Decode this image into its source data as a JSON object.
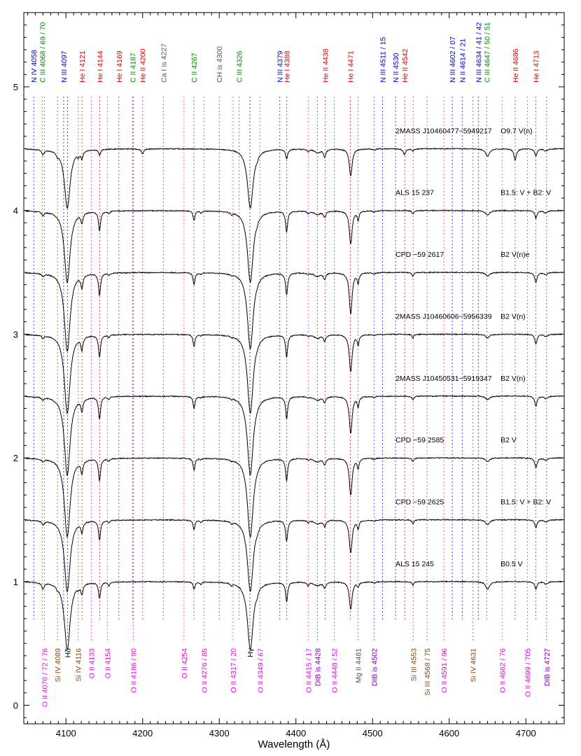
{
  "chart_data": {
    "type": "line",
    "xlabel": "Wavelength (Å)",
    "ylabel": "",
    "xlim": [
      4045,
      4750
    ],
    "ylim": [
      -0.15,
      5.6
    ],
    "xticks": [
      4100,
      4200,
      4300,
      4400,
      4500,
      4600,
      4700
    ],
    "yticks": [
      0,
      1,
      2,
      3,
      4,
      5
    ],
    "spectra": [
      {
        "name": "2MASS J10460477−5949217",
        "spt": "O9.7 V(n)",
        "offset": 4.5,
        "kind": "O"
      },
      {
        "name": "ALS 15 237",
        "spt": "B1.5: V + B2: V",
        "offset": 4.0,
        "kind": "B1"
      },
      {
        "name": "CPD −59 2617",
        "spt": "B2 V(n)e",
        "offset": 3.5,
        "kind": "Be"
      },
      {
        "name": "2MASS J10460606−5956339",
        "spt": "B2 V(n)",
        "offset": 3.0,
        "kind": "B2"
      },
      {
        "name": "2MASS J10450531−5919347",
        "spt": "B2 V(n)",
        "offset": 2.5,
        "kind": "B2"
      },
      {
        "name": "CPD −59 2585",
        "spt": "B2 V",
        "offset": 2.0,
        "kind": "B2"
      },
      {
        "name": "CPD −59 2625",
        "spt": "B1.5: V + B2: V",
        "offset": 1.5,
        "kind": "B1"
      },
      {
        "name": "ALS 15 245",
        "spt": "B0.5 V",
        "offset": 1.0,
        "kind": "B0"
      }
    ],
    "top_labels": [
      {
        "text": "N IV 4058",
        "x": 4058,
        "color": "#0000dd"
      },
      {
        "text": "C III 4068 / 69 / 70",
        "x": 4069,
        "color": "#008800"
      },
      {
        "text": "N III 4097",
        "x": 4097,
        "color": "#0000dd"
      },
      {
        "text": "He I 4121",
        "x": 4121,
        "color": "#dd0000"
      },
      {
        "text": "He I 4144",
        "x": 4144,
        "color": "#dd0000"
      },
      {
        "text": "He I 4169",
        "x": 4169,
        "color": "#dd0000"
      },
      {
        "text": "C II 4187",
        "x": 4187,
        "color": "#008800"
      },
      {
        "text": "He II 4200",
        "x": 4200,
        "color": "#dd0000"
      },
      {
        "text": "Ca I is 4227",
        "x": 4227,
        "color": "#555555"
      },
      {
        "text": "C II 4267",
        "x": 4267,
        "color": "#008800"
      },
      {
        "text": "CH is 4300",
        "x": 4300,
        "color": "#555555"
      },
      {
        "text": "C III 4326",
        "x": 4326,
        "color": "#008800"
      },
      {
        "text": "N III 4379",
        "x": 4379,
        "color": "#0000dd"
      },
      {
        "text": "He I 4388",
        "x": 4388,
        "color": "#dd0000"
      },
      {
        "text": "He II 4438",
        "x": 4438,
        "color": "#dd0000"
      },
      {
        "text": "He I 4471",
        "x": 4471,
        "color": "#dd0000"
      },
      {
        "text": "N III 4511 / 15",
        "x": 4513,
        "color": "#0000dd"
      },
      {
        "text": "N II 4530",
        "x": 4530,
        "color": "#0000dd"
      },
      {
        "text": "He II 4542",
        "x": 4542,
        "color": "#dd0000"
      },
      {
        "text": "N III 4602 / 07",
        "x": 4604,
        "color": "#0000dd"
      },
      {
        "text": "N II 4614 / 21",
        "x": 4617,
        "color": "#0000dd"
      },
      {
        "text": "N III 4634 / 41 / 42",
        "x": 4638,
        "color": "#0000dd"
      },
      {
        "text": "C III 4647 / 50 / 51",
        "x": 4649,
        "color": "#008800"
      },
      {
        "text": "He II 4686",
        "x": 4686,
        "color": "#dd0000"
      },
      {
        "text": "He I 4713",
        "x": 4713,
        "color": "#dd0000"
      }
    ],
    "bottom_labels": [
      {
        "text": "O II 4070 / 72 / 76",
        "x": 4072,
        "color": "#ee00ee"
      },
      {
        "text": "Si IV 4089",
        "x": 4089,
        "color": "#8b4513"
      },
      {
        "text": "Hδ",
        "x": 4102,
        "color": "#000000"
      },
      {
        "text": "Si IV 4116",
        "x": 4116,
        "color": "#8b4513"
      },
      {
        "text": "O II 4133",
        "x": 4133,
        "color": "#ee00ee"
      },
      {
        "text": "O II 4154",
        "x": 4154,
        "color": "#ee00ee"
      },
      {
        "text": "O II 4186 / 90",
        "x": 4188,
        "color": "#ee00ee"
      },
      {
        "text": "O II 4254",
        "x": 4254,
        "color": "#ee00ee"
      },
      {
        "text": "O II 4276 / 85",
        "x": 4280,
        "color": "#ee00ee"
      },
      {
        "text": "O II 4317 / 20",
        "x": 4318,
        "color": "#ee00ee"
      },
      {
        "text": "Hγ",
        "x": 4340,
        "color": "#000000"
      },
      {
        "text": "O II 4349 / 67",
        "x": 4353,
        "color": "#ee00ee"
      },
      {
        "text": "O II 4415 / 17",
        "x": 4416,
        "color": "#ee00ee"
      },
      {
        "text": "DIB is 4428",
        "x": 4428,
        "color": "#7700cc"
      },
      {
        "text": "O II 4448 / 52",
        "x": 4450,
        "color": "#ee00ee"
      },
      {
        "text": "Mg II 4481",
        "x": 4481,
        "color": "#555555"
      },
      {
        "text": "DIB is 4502",
        "x": 4502,
        "color": "#7700cc"
      },
      {
        "text": "Si III 4553",
        "x": 4553,
        "color": "#8b4513"
      },
      {
        "text": "Si III 4568 / 75",
        "x": 4571,
        "color": "#8b4513"
      },
      {
        "text": "O II 4591 / 96",
        "x": 4593,
        "color": "#ee00ee"
      },
      {
        "text": "Si IV 4631",
        "x": 4631,
        "color": "#8b4513"
      },
      {
        "text": "O II 4662 / 76",
        "x": 4669,
        "color": "#ee00ee"
      },
      {
        "text": "O II 4699 / 705",
        "x": 4702,
        "color": "#ee00ee"
      },
      {
        "text": "DIB is 4727",
        "x": 4727,
        "color": "#7700cc"
      }
    ],
    "absorption_lines": [
      {
        "x": 4101.7,
        "depth": {
          "O": 0.48,
          "B0": 0.55,
          "B1": 0.58,
          "B2": 0.64,
          "Be": 0.64
        },
        "width": 4.5
      },
      {
        "x": 4340.5,
        "depth": {
          "O": 0.48,
          "B0": 0.55,
          "B1": 0.58,
          "B2": 0.64,
          "Be": 0.62
        },
        "width": 4.5
      },
      {
        "x": 4471.5,
        "depth": {
          "O": 0.22,
          "B0": 0.22,
          "B1": 0.27,
          "B2": 0.3,
          "Be": 0.33
        },
        "width": 2.2
      },
      {
        "x": 4387.9,
        "depth": {
          "O": 0.08,
          "B0": 0.16,
          "B1": 0.17,
          "B2": 0.18,
          "Be": 0.18
        },
        "width": 1.6
      },
      {
        "x": 4143.8,
        "depth": {
          "O": 0.05,
          "B0": 0.13,
          "B1": 0.16,
          "B2": 0.18,
          "Be": 0.18
        },
        "width": 1.6
      },
      {
        "x": 4120.8,
        "depth": {
          "O": 0.06,
          "B0": 0.08,
          "B1": 0.08,
          "B2": 0.1,
          "Be": 0.1
        },
        "width": 1.6
      },
      {
        "x": 4713.1,
        "depth": {
          "O": 0.06,
          "B0": 0.06,
          "B1": 0.06,
          "B2": 0.08,
          "Be": 0.08
        },
        "width": 1.8
      },
      {
        "x": 4267.1,
        "depth": {
          "O": 0.0,
          "B0": 0.06,
          "B1": 0.08,
          "B2": 0.1,
          "Be": 0.1
        },
        "width": 1.4
      },
      {
        "x": 4481.2,
        "depth": {
          "O": 0.0,
          "B0": 0.04,
          "B1": 0.07,
          "B2": 0.08,
          "Be": 0.08
        },
        "width": 1.4
      },
      {
        "x": 4437.5,
        "depth": {
          "O": 0.06,
          "B0": 0.05,
          "B1": 0.05,
          "B2": 0.05,
          "Be": 0.05
        },
        "width": 1.8
      },
      {
        "x": 4686.0,
        "depth": {
          "O": 0.09,
          "B0": 0.0,
          "B1": 0.0,
          "B2": 0.0,
          "Be": 0.0
        },
        "width": 2.0
      },
      {
        "x": 4541.6,
        "depth": {
          "O": 0.05,
          "B0": 0.0,
          "B1": 0.0,
          "B2": 0.0,
          "Be": 0.0
        },
        "width": 1.8
      },
      {
        "x": 4200.0,
        "depth": {
          "O": 0.04,
          "B0": 0.0,
          "B1": 0.0,
          "B2": 0.0,
          "Be": 0.0
        },
        "width": 1.8
      },
      {
        "x": 4650.0,
        "depth": {
          "O": 0.06,
          "B0": 0.06,
          "B1": 0.04,
          "B2": 0.03,
          "Be": 0.03
        },
        "width": 3.0
      },
      {
        "x": 4070.0,
        "depth": {
          "O": 0.04,
          "B0": 0.05,
          "B1": 0.03,
          "B2": 0.02,
          "Be": 0.02
        },
        "width": 2.0
      },
      {
        "x": 4088.9,
        "depth": {
          "O": 0.03,
          "B0": 0.02,
          "B1": 0.0,
          "B2": 0.0,
          "Be": 0.0
        },
        "width": 1.4
      },
      {
        "x": 4116.1,
        "depth": {
          "O": 0.03,
          "B0": 0.02,
          "B1": 0.0,
          "B2": 0.0,
          "Be": 0.0
        },
        "width": 1.4
      },
      {
        "x": 4552.6,
        "depth": {
          "O": 0.02,
          "B0": 0.03,
          "B1": 0.03,
          "B2": 0.03,
          "Be": 0.03
        },
        "width": 1.4
      },
      {
        "x": 4428.0,
        "depth": {
          "O": 0.03,
          "B0": 0.03,
          "B1": 0.03,
          "B2": 0.03,
          "Be": 0.03
        },
        "width": 5.0
      },
      {
        "x": 4416.0,
        "depth": {
          "O": 0.02,
          "B0": 0.03,
          "B1": 0.02,
          "B2": 0.01,
          "Be": 0.01
        },
        "width": 1.4
      },
      {
        "x": 4349.4,
        "depth": {
          "O": 0.02,
          "B0": 0.03,
          "B1": 0.02,
          "B2": 0.01,
          "Be": 0.01
        },
        "width": 1.4
      },
      {
        "x": 4156.0,
        "depth": {
          "O": 0.0,
          "B0": 0.03,
          "B1": 0.02,
          "B2": 0.02,
          "Be": 0.02
        },
        "width": 1.4
      },
      {
        "x": 4316.0,
        "depth": {
          "O": 0.0,
          "B0": 0.02,
          "B1": 0.02,
          "B2": 0.01,
          "Be": 0.01
        },
        "width": 1.4
      },
      {
        "x": 4276.0,
        "depth": {
          "O": 0.0,
          "B0": 0.02,
          "B1": 0.02,
          "B2": 0.01,
          "Be": 0.01
        },
        "width": 1.4
      },
      {
        "x": 4726.0,
        "depth": {
          "O": 0.02,
          "B0": 0.02,
          "B1": 0.02,
          "B2": 0.02,
          "Be": 0.02
        },
        "width": 2.5
      },
      {
        "x": 4502.0,
        "depth": {
          "O": 0.01,
          "B0": 0.01,
          "B1": 0.01,
          "B2": 0.01,
          "Be": 0.01
        },
        "width": 2.0
      }
    ],
    "colors": {
      "axis": "#000000",
      "spectrum": "#000000",
      "background": "#ffffff"
    },
    "grid": false,
    "legend": "none"
  }
}
